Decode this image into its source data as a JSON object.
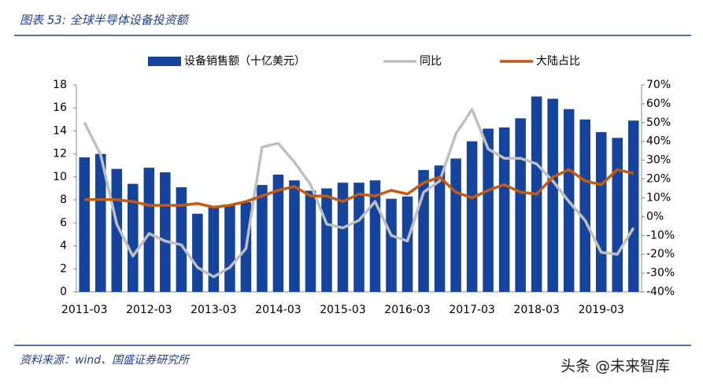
{
  "chart_data": {
    "type": "bar_line",
    "title": "图表 53: 全球半导体设备投资额",
    "source": "资料来源：wind、国盛证券研究所",
    "watermark": "头条 @未来智库",
    "categories": [
      "2011-03",
      null,
      null,
      null,
      "2012-03",
      null,
      null,
      null,
      "2013-03",
      null,
      null,
      null,
      "2014-03",
      null,
      null,
      null,
      "2015-03",
      null,
      null,
      null,
      "2016-03",
      null,
      null,
      null,
      "2017-03",
      null,
      null,
      null,
      "2018-03",
      null,
      null,
      null,
      "2019-03",
      null,
      null
    ],
    "series": [
      {
        "name": "设备销售额（十亿美元）",
        "color": "#16449c",
        "kind": "bar",
        "values": [
          11.7,
          12.0,
          10.7,
          9.4,
          10.8,
          10.4,
          9.1,
          6.8,
          7.4,
          7.6,
          7.8,
          9.3,
          10.2,
          9.7,
          8.8,
          9.0,
          9.5,
          9.5,
          9.7,
          8.1,
          8.3,
          10.6,
          11.0,
          11.6,
          13.1,
          14.2,
          14.3,
          15.1,
          17.0,
          16.8,
          15.9,
          15.0,
          13.9,
          13.4,
          14.9
        ]
      },
      {
        "name": "同比",
        "color": "#bfbfbf",
        "kind": "line",
        "axis": "y2",
        "values": [
          50,
          33,
          -4,
          -21,
          -9,
          -13,
          -15,
          -27,
          -32,
          -27,
          -17,
          37,
          39,
          29,
          17,
          -4,
          -6,
          -2,
          8,
          -10,
          -13,
          13,
          19,
          44,
          57,
          36,
          31,
          31,
          28,
          19,
          8,
          -2,
          -19,
          -20,
          -6
        ]
      },
      {
        "name": "大陆占比",
        "color": "#c55a11",
        "kind": "line",
        "axis": "y2",
        "values": [
          9,
          9,
          9,
          8,
          6,
          6,
          6,
          7,
          5,
          6,
          8,
          11,
          14,
          16,
          11,
          11,
          8,
          12,
          11,
          14,
          12,
          18,
          21,
          13,
          10,
          14,
          17,
          13,
          12,
          21,
          25,
          19,
          17,
          25,
          23
        ]
      }
    ],
    "ylim": [
      0,
      18
    ],
    "yticks": [
      0,
      2,
      4,
      6,
      8,
      10,
      12,
      14,
      16,
      18
    ],
    "y2lim": [
      -40,
      70
    ],
    "y2ticks": [
      {
        "value": -40,
        "label": "-40%"
      },
      {
        "value": -30,
        "label": "-30%"
      },
      {
        "value": -20,
        "label": "-20%"
      },
      {
        "value": -10,
        "label": "-10%"
      },
      {
        "value": 0,
        "label": "0%"
      },
      {
        "value": 10,
        "label": "10%"
      },
      {
        "value": 20,
        "label": "20%"
      },
      {
        "value": 30,
        "label": "30%"
      },
      {
        "value": 40,
        "label": "40%"
      },
      {
        "value": 50,
        "label": "50%"
      },
      {
        "value": 60,
        "label": "60%"
      },
      {
        "value": 70,
        "label": "70%"
      }
    ]
  }
}
